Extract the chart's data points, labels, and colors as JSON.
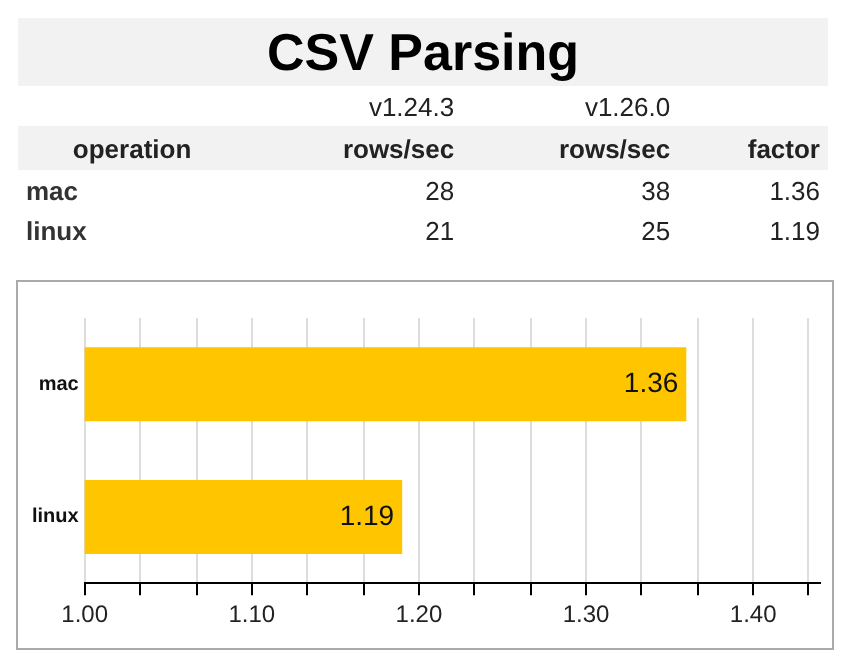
{
  "chart_data": [
    {
      "type": "other",
      "title": "CSV Parsing",
      "annotations": [
        "v1.24.3",
        "v1.26.0",
        "operation",
        "rows/sec",
        "rows/sec",
        "factor",
        "mac",
        "28",
        "38",
        "1.36",
        "linux",
        "21",
        "25",
        "1.19"
      ]
    },
    {
      "type": "bar",
      "orientation": "horizontal",
      "categories": [
        "mac",
        "linux"
      ],
      "values": [
        1.36,
        1.19
      ],
      "color": "#ffc600",
      "data_labels": true,
      "grid": "x",
      "xlim": [
        1.0,
        1.44
      ],
      "xticks": [
        {
          "value": 1.0,
          "label": "1.00"
        },
        {
          "value": 1.033,
          "label": null
        },
        {
          "value": 1.067,
          "label": null
        },
        {
          "value": 1.1,
          "label": "1.10"
        },
        {
          "value": 1.133,
          "label": null
        },
        {
          "value": 1.167,
          "label": null
        },
        {
          "value": 1.2,
          "label": "1.20"
        },
        {
          "value": 1.233,
          "label": null
        },
        {
          "value": 1.267,
          "label": null
        },
        {
          "value": 1.3,
          "label": "1.30"
        },
        {
          "value": 1.333,
          "label": null
        },
        {
          "value": 1.367,
          "label": null
        },
        {
          "value": 1.4,
          "label": "1.40"
        },
        {
          "value": 1.433,
          "label": null
        }
      ]
    }
  ]
}
